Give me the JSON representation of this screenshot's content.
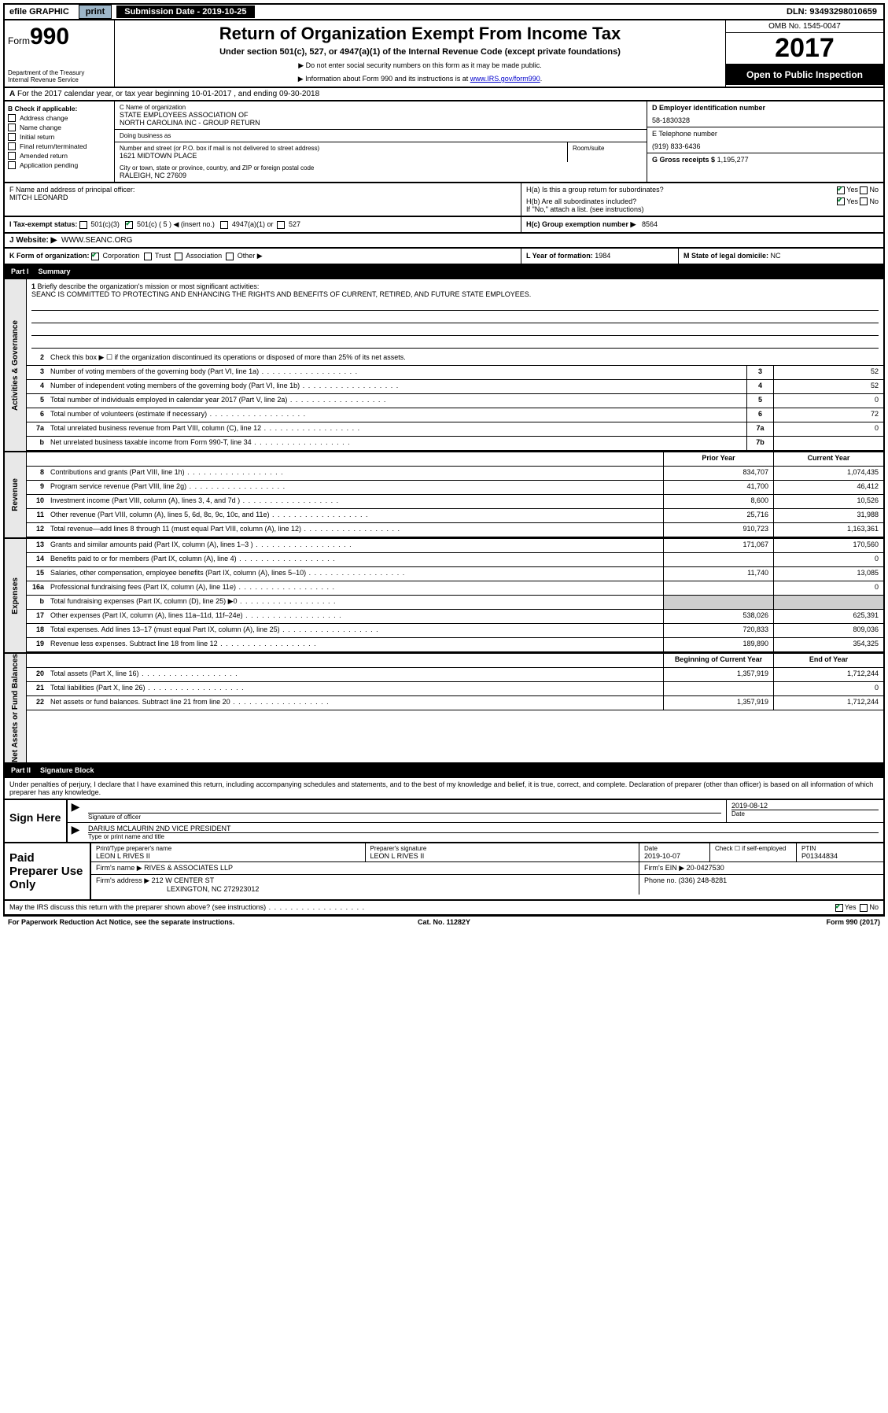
{
  "topbar": {
    "efile": "efile GRAPHIC",
    "print": "print",
    "subdate_label": "Submission Date - 2019-10-25",
    "dln": "DLN: 93493298010659"
  },
  "hdr": {
    "form": "Form",
    "num": "990",
    "dept": "Department of the Treasury\nInternal Revenue Service",
    "title": "Return of Organization Exempt From Income Tax",
    "sub": "Under section 501(c), 527, or 4947(a)(1) of the Internal Revenue Code (except private foundations)",
    "note1": "▶ Do not enter social security numbers on this form as it may be made public.",
    "note2": "▶ Information about Form 990 and its instructions is at ",
    "note2_link": "www.IRS.gov/form990",
    "omb": "OMB No. 1545-0047",
    "year": "2017",
    "open": "Open to Public Inspection"
  },
  "a": {
    "prefix": "A",
    "text": "For the 2017 calendar year, or tax year beginning 10-01-2017   , and ending 09-30-2018"
  },
  "b": {
    "label": "B Check if applicable:",
    "opts": [
      "Address change",
      "Name change",
      "Initial return",
      "Final return/terminated",
      "Amended return",
      "Application pending"
    ]
  },
  "c": {
    "name_label": "C Name of organization",
    "name": "STATE EMPLOYEES ASSOCIATION OF\nNORTH CAROLINA INC - GROUP RETURN",
    "dba_label": "Doing business as",
    "dba": "",
    "addr_label": "Number and street (or P.O. box if mail is not delivered to street address)",
    "room_label": "Room/suite",
    "addr": "1621 MIDTOWN PLACE",
    "city_label": "City or town, state or province, country, and ZIP or foreign postal code",
    "city": "RALEIGH, NC  27609"
  },
  "d": {
    "label": "D Employer identification number",
    "val": "58-1830328"
  },
  "e": {
    "label": "E Telephone number",
    "val": "(919) 833-6436"
  },
  "g": {
    "label": "G Gross receipts $",
    "val": "1,195,277"
  },
  "f": {
    "label": "F  Name and address of principal officer:",
    "name": "MITCH LEONARD"
  },
  "h": {
    "a_label": "H(a)  Is this a group return for subordinates?",
    "b_label": "H(b)  Are all subordinates included?",
    "b_note": "If \"No,\" attach a list. (see instructions)",
    "c_label": "H(c)  Group exemption number ▶",
    "c_val": "8564",
    "yes": "Yes",
    "no": "No"
  },
  "i": {
    "label": "I    Tax-exempt status:",
    "opts": [
      "501(c)(3)",
      "501(c) ( 5 ) ◀ (insert no.)",
      "4947(a)(1) or",
      "527"
    ]
  },
  "j": {
    "label": "J   Website: ▶",
    "val": "WWW.SEANC.ORG"
  },
  "k": {
    "label": "K Form of organization:",
    "opts": [
      "Corporation",
      "Trust",
      "Association",
      "Other ▶"
    ]
  },
  "l": {
    "label": "L Year of formation:",
    "val": "1984"
  },
  "m": {
    "label": "M State of legal domicile:",
    "val": "NC"
  },
  "part1": {
    "head_num": "Part I",
    "head_title": "Summary",
    "briefly_num": "1",
    "briefly_label": "Briefly describe the organization's mission or most significant activities:",
    "briefly_text": "SEANC IS COMMITTED TO PROTECTING AND ENHANCING THE RIGHTS AND BENEFITS OF CURRENT, RETIRED, AND FUTURE STATE EMPLOYEES.",
    "line2": "Check this box ▶ ☐  if the organization discontinued its operations or disposed of more than 25% of its net assets.",
    "vlabels": [
      "Activities & Governance",
      "Revenue",
      "Expenses",
      "Net Assets or Fund Balances"
    ],
    "gov_lines": [
      {
        "n": "3",
        "t": "Number of voting members of the governing body (Part VI, line 1a)",
        "box": "3",
        "v": "52"
      },
      {
        "n": "4",
        "t": "Number of independent voting members of the governing body (Part VI, line 1b)",
        "box": "4",
        "v": "52"
      },
      {
        "n": "5",
        "t": "Total number of individuals employed in calendar year 2017 (Part V, line 2a)",
        "box": "5",
        "v": "0"
      },
      {
        "n": "6",
        "t": "Total number of volunteers (estimate if necessary)",
        "box": "6",
        "v": "72"
      },
      {
        "n": "7a",
        "t": "Total unrelated business revenue from Part VIII, column (C), line 12",
        "box": "7a",
        "v": "0"
      },
      {
        "n": "b",
        "t": "Net unrelated business taxable income from Form 990-T, line 34",
        "box": "7b",
        "v": ""
      }
    ],
    "col_prior": "Prior Year",
    "col_current": "Current Year",
    "rev_lines": [
      {
        "n": "8",
        "t": "Contributions and grants (Part VIII, line 1h)",
        "p": "834,707",
        "c": "1,074,435"
      },
      {
        "n": "9",
        "t": "Program service revenue (Part VIII, line 2g)",
        "p": "41,700",
        "c": "46,412"
      },
      {
        "n": "10",
        "t": "Investment income (Part VIII, column (A), lines 3, 4, and 7d )",
        "p": "8,600",
        "c": "10,526"
      },
      {
        "n": "11",
        "t": "Other revenue (Part VIII, column (A), lines 5, 6d, 8c, 9c, 10c, and 11e)",
        "p": "25,716",
        "c": "31,988"
      },
      {
        "n": "12",
        "t": "Total revenue—add lines 8 through 11 (must equal Part VIII, column (A), line 12)",
        "p": "910,723",
        "c": "1,163,361"
      }
    ],
    "exp_lines": [
      {
        "n": "13",
        "t": "Grants and similar amounts paid (Part IX, column (A), lines 1–3 )",
        "p": "171,067",
        "c": "170,560"
      },
      {
        "n": "14",
        "t": "Benefits paid to or for members (Part IX, column (A), line 4)",
        "p": "",
        "c": "0"
      },
      {
        "n": "15",
        "t": "Salaries, other compensation, employee benefits (Part IX, column (A), lines 5–10)",
        "p": "11,740",
        "c": "13,085"
      },
      {
        "n": "16a",
        "t": "Professional fundraising fees (Part IX, column (A), line 11e)",
        "p": "",
        "c": "0"
      },
      {
        "n": "b",
        "t": "Total fundraising expenses (Part IX, column (D), line 25) ▶0",
        "p": "shade",
        "c": "shade"
      },
      {
        "n": "17",
        "t": "Other expenses (Part IX, column (A), lines 11a–11d, 11f–24e)",
        "p": "538,026",
        "c": "625,391"
      },
      {
        "n": "18",
        "t": "Total expenses. Add lines 13–17 (must equal Part IX, column (A), line 25)",
        "p": "720,833",
        "c": "809,036"
      },
      {
        "n": "19",
        "t": "Revenue less expenses. Subtract line 18 from line 12",
        "p": "189,890",
        "c": "354,325"
      }
    ],
    "col_beg": "Beginning of Current Year",
    "col_end": "End of Year",
    "net_lines": [
      {
        "n": "20",
        "t": "Total assets (Part X, line 16)",
        "p": "1,357,919",
        "c": "1,712,244"
      },
      {
        "n": "21",
        "t": "Total liabilities (Part X, line 26)",
        "p": "",
        "c": "0"
      },
      {
        "n": "22",
        "t": "Net assets or fund balances. Subtract line 21 from line 20",
        "p": "1,357,919",
        "c": "1,712,244"
      }
    ]
  },
  "part2": {
    "head_num": "Part II",
    "head_title": "Signature Block",
    "declare": "Under penalties of perjury, I declare that I have examined this return, including accompanying schedules and statements, and to the best of my knowledge and belief, it is true, correct, and complete. Declaration of preparer (other than officer) is based on all information of which preparer has any knowledge."
  },
  "sign": {
    "label": "Sign Here",
    "sig_label": "Signature of officer",
    "date_label": "Date",
    "date": "2019-08-12",
    "name": "DARIUS MCLAURIN  2ND VICE PRESIDENT",
    "name_label": "Type or print name and title"
  },
  "paid": {
    "label": "Paid Preparer Use Only",
    "h_prep": "Print/Type preparer's name",
    "h_sig": "Preparer's signature",
    "h_date": "Date",
    "h_self": "Check ☐ if self-employed",
    "h_ptin": "PTIN",
    "prep_name": "LEON L RIVES II",
    "prep_sig": "LEON L RIVES II",
    "prep_date": "2019-10-07",
    "ptin": "P01344834",
    "firm_label": "Firm's name    ▶",
    "firm": "RIVES & ASSOCIATES LLP",
    "ein_label": "Firm's EIN ▶",
    "ein": "20-0427530",
    "addr_label": "Firm's address ▶",
    "addr": "212 W CENTER ST",
    "city": "LEXINGTON, NC  272923012",
    "phone_label": "Phone no.",
    "phone": "(336) 248-8281"
  },
  "discuss": {
    "text": "May the IRS discuss this return with the preparer shown above? (see instructions)",
    "yes": "Yes",
    "no": "No"
  },
  "footer": {
    "l": "For Paperwork Reduction Act Notice, see the separate instructions.",
    "c": "Cat. No. 11282Y",
    "r": "Form 990 (2017)"
  }
}
